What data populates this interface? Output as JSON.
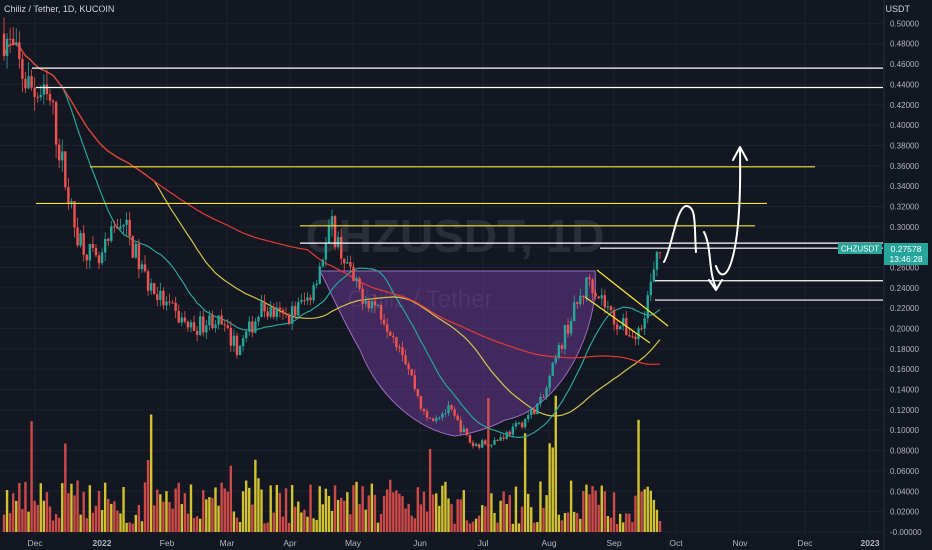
{
  "header": {
    "symbol_line": "Chiliz / Tether, 1D, KUCOIN",
    "currency": "USDT"
  },
  "watermark": {
    "ticker": "CHZUSDT, 1D",
    "name": "Chiliz / Tether"
  },
  "price_badge": {
    "label": "CHZUSDT",
    "price": "0.27578",
    "countdown": "13:46:28"
  },
  "chart_data": {
    "type": "candlestick",
    "x_ticks": [
      "Dec",
      "2022",
      "Feb",
      "Mar",
      "Apr",
      "May",
      "Jun",
      "Jul",
      "Aug",
      "Sep",
      "Oct",
      "Nov",
      "Dec",
      "2023"
    ],
    "y_ticks": [
      "0.50000",
      "0.48000",
      "0.46000",
      "0.44000",
      "0.42000",
      "0.40000",
      "0.38000",
      "0.36000",
      "0.34000",
      "0.32000",
      "0.30000",
      "0.28000",
      "0.26000",
      "0.24000",
      "0.22000",
      "0.20000",
      "0.18000",
      "0.16000",
      "0.14000",
      "0.12000",
      "0.10000",
      "0.08000",
      "0.06000",
      "0.04000",
      "0.02000",
      "-0.00000"
    ],
    "ylim": [
      -0.003,
      0.523
    ],
    "price_path": [
      0.49,
      0.44,
      0.42,
      0.3,
      0.26,
      0.31,
      0.25,
      0.22,
      0.2,
      0.21,
      0.18,
      0.22,
      0.21,
      0.23,
      0.3,
      0.24,
      0.22,
      0.18,
      0.11,
      0.12,
      0.085,
      0.09,
      0.105,
      0.13,
      0.2,
      0.25,
      0.21,
      0.19,
      0.27578
    ],
    "horizontal_levels": [
      {
        "price": 0.456,
        "color": "#ffffff"
      },
      {
        "price": 0.437,
        "color": "#ffffff"
      },
      {
        "price": 0.359,
        "color": "#f5e133"
      },
      {
        "price": 0.323,
        "color": "#f5e133"
      },
      {
        "price": 0.301,
        "color": "#f5e133"
      },
      {
        "price": 0.284,
        "color": "#ffffff"
      },
      {
        "price": 0.279,
        "color": "#ffffff"
      },
      {
        "price": 0.247,
        "color": "#ffffff"
      },
      {
        "price": 0.228,
        "color": "#ffffff"
      }
    ],
    "pattern": "cup",
    "colors": {
      "up": "#26a69a",
      "down": "#ef5350",
      "volume_up": "#f5e133",
      "volume_down": "#ef5350",
      "cup": "#7b3fa6",
      "ma_teal": "#26a69a",
      "ma_yellow": "#d4c44a",
      "ma_red": "#e53935"
    }
  }
}
